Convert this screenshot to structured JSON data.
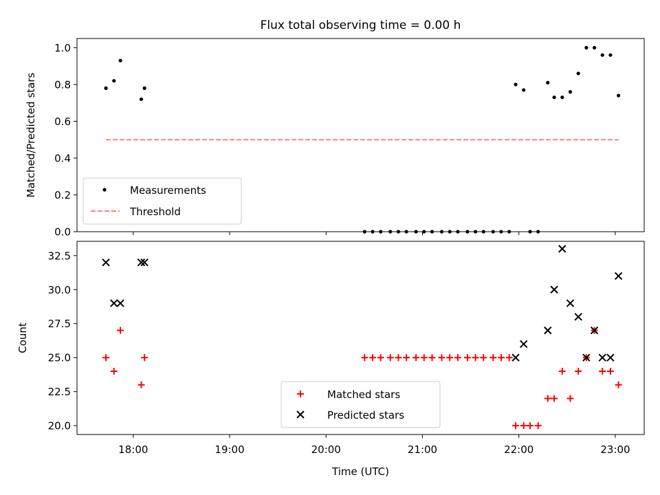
{
  "chart_data": [
    {
      "type": "scatter",
      "title": "Flux total observing time = 0.00 h",
      "xlabel": "",
      "ylabel": "Matched/Predicted stars",
      "xlim": [
        "17:25",
        "23:18"
      ],
      "ylim": [
        0,
        1.05
      ],
      "x_ticks": [
        "18:00",
        "19:00",
        "20:00",
        "21:00",
        "22:00",
        "23:00"
      ],
      "x_tick_labels_shown": false,
      "y_ticks": [
        "0.0",
        "0.2",
        "0.4",
        "0.6",
        "0.8",
        "1.0"
      ],
      "legend": {
        "placement": "lower-left",
        "entries": [
          "Measurements",
          "Threshold"
        ]
      },
      "series": [
        {
          "name": "Measurements",
          "marker": "dot",
          "color": "#000000",
          "points": [
            [
              "17:43",
              0.78
            ],
            [
              "17:48",
              0.82
            ],
            [
              "17:52",
              0.93
            ],
            [
              "18:05",
              0.72
            ],
            [
              "18:07",
              0.78
            ],
            [
              "20:24",
              0.0
            ],
            [
              "20:29",
              0.0
            ],
            [
              "20:34",
              0.0
            ],
            [
              "20:40",
              0.0
            ],
            [
              "20:45",
              0.0
            ],
            [
              "20:50",
              0.0
            ],
            [
              "20:56",
              0.0
            ],
            [
              "21:01",
              0.0
            ],
            [
              "21:06",
              0.0
            ],
            [
              "21:12",
              0.0
            ],
            [
              "21:17",
              0.0
            ],
            [
              "21:22",
              0.0
            ],
            [
              "21:28",
              0.0
            ],
            [
              "21:33",
              0.0
            ],
            [
              "21:38",
              0.0
            ],
            [
              "21:44",
              0.0
            ],
            [
              "21:49",
              0.0
            ],
            [
              "21:54",
              0.0
            ],
            [
              "21:58",
              0.8
            ],
            [
              "22:03",
              0.77
            ],
            [
              "22:07",
              0.0
            ],
            [
              "22:12",
              0.0
            ],
            [
              "22:18",
              0.81
            ],
            [
              "22:22",
              0.73
            ],
            [
              "22:27",
              0.73
            ],
            [
              "22:32",
              0.76
            ],
            [
              "22:37",
              0.86
            ],
            [
              "22:42",
              1.0
            ],
            [
              "22:47",
              1.0
            ],
            [
              "22:52",
              0.96
            ],
            [
              "22:57",
              0.96
            ],
            [
              "23:02",
              0.74
            ]
          ]
        },
        {
          "name": "Threshold",
          "marker": "dashed-line",
          "color": "#ff8080",
          "points": [
            [
              "17:43",
              0.5
            ],
            [
              "23:02",
              0.5
            ]
          ]
        }
      ]
    },
    {
      "type": "scatter",
      "title": "",
      "xlabel": "Time (UTC)",
      "ylabel": "Count",
      "xlim": [
        "17:25",
        "23:18"
      ],
      "ylim": [
        19.35,
        33.55
      ],
      "x_ticks": [
        "18:00",
        "19:00",
        "20:00",
        "21:00",
        "22:00",
        "23:00"
      ],
      "y_ticks": [
        "20.0",
        "22.5",
        "25.0",
        "27.5",
        "30.0",
        "32.5"
      ],
      "legend": {
        "placement": "lower-center",
        "entries": [
          "Matched stars",
          "Predicted stars"
        ]
      },
      "series": [
        {
          "name": "Matched stars",
          "marker": "plus",
          "color": "#ff0000",
          "points": [
            [
              "17:43",
              25
            ],
            [
              "17:48",
              24
            ],
            [
              "17:52",
              27
            ],
            [
              "18:05",
              23
            ],
            [
              "18:07",
              25
            ],
            [
              "20:24",
              25
            ],
            [
              "20:29",
              25
            ],
            [
              "20:34",
              25
            ],
            [
              "20:40",
              25
            ],
            [
              "20:45",
              25
            ],
            [
              "20:50",
              25
            ],
            [
              "20:56",
              25
            ],
            [
              "21:01",
              25
            ],
            [
              "21:06",
              25
            ],
            [
              "21:12",
              25
            ],
            [
              "21:17",
              25
            ],
            [
              "21:22",
              25
            ],
            [
              "21:28",
              25
            ],
            [
              "21:33",
              25
            ],
            [
              "21:38",
              25
            ],
            [
              "21:44",
              25
            ],
            [
              "21:49",
              25
            ],
            [
              "21:54",
              25
            ],
            [
              "21:58",
              20
            ],
            [
              "22:03",
              20
            ],
            [
              "22:07",
              20
            ],
            [
              "22:12",
              20
            ],
            [
              "22:18",
              22
            ],
            [
              "22:22",
              22
            ],
            [
              "22:27",
              24
            ],
            [
              "22:32",
              22
            ],
            [
              "22:37",
              24
            ],
            [
              "22:42",
              25
            ],
            [
              "22:47",
              27
            ],
            [
              "22:52",
              24
            ],
            [
              "22:57",
              24
            ],
            [
              "23:02",
              23
            ]
          ]
        },
        {
          "name": "Predicted stars",
          "marker": "x",
          "color": "#000000",
          "points": [
            [
              "17:43",
              32
            ],
            [
              "17:48",
              29
            ],
            [
              "17:52",
              29
            ],
            [
              "18:05",
              32
            ],
            [
              "18:07",
              32
            ],
            [
              "21:58",
              25
            ],
            [
              "22:03",
              26
            ],
            [
              "22:18",
              27
            ],
            [
              "22:22",
              30
            ],
            [
              "22:27",
              33
            ],
            [
              "22:32",
              29
            ],
            [
              "22:37",
              28
            ],
            [
              "22:42",
              25
            ],
            [
              "22:47",
              27
            ],
            [
              "22:52",
              25
            ],
            [
              "22:57",
              25
            ],
            [
              "23:02",
              31
            ]
          ]
        }
      ]
    }
  ]
}
